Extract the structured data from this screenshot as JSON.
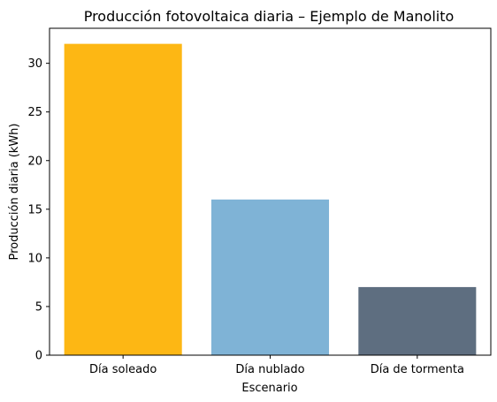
{
  "chart_data": {
    "type": "bar",
    "title": "Producción fotovoltaica diaria – Ejemplo de Manolito",
    "xlabel": "Escenario",
    "ylabel": "Producción diaria (kWh)",
    "categories": [
      "Día soleado",
      "Día nublado",
      "Día de tormenta"
    ],
    "values": [
      32,
      16,
      7
    ],
    "colors": [
      "#fdb714",
      "#7fb3d6",
      "#5e6e80"
    ],
    "ylim": [
      0,
      33.6
    ],
    "yticks": [
      0,
      5,
      10,
      15,
      20,
      25,
      30
    ],
    "grid": false,
    "legend": "none"
  }
}
